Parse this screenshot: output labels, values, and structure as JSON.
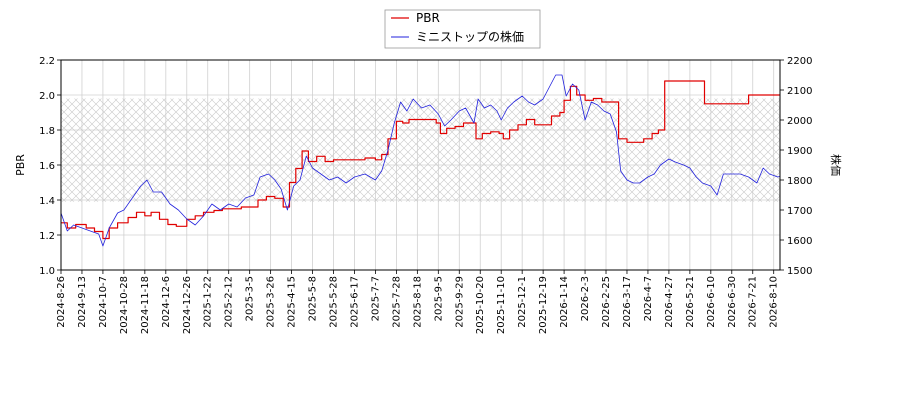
{
  "chart_data": {
    "type": "line",
    "grid": true,
    "legend_placement": "top-center",
    "band": {
      "axis": "left",
      "from": 1.39,
      "to": 1.98,
      "pattern": "crosshatch"
    },
    "x": {
      "tick_labels": [
        "2024-8-26",
        "2024-9-13",
        "2024-10-7",
        "2024-10-28",
        "2024-11-18",
        "2024-12-6",
        "2024-12-26",
        "2025-1-22",
        "2025-2-12",
        "2025-3-5",
        "2025-3-26",
        "2025-4-15",
        "2025-5-8",
        "2025-5-28",
        "2025-6-17",
        "2025-7-7",
        "2025-7-28",
        "2025-8-18",
        "2025-9-5",
        "2025-9-29",
        "2025-10-20",
        "2025-11-10",
        "2025-12-1",
        "2025-12-19",
        "2026-1-14",
        "2026-2-3",
        "2026-2-25",
        "2026-3-17",
        "2026-4-7",
        "2026-4-27",
        "2026-5-21",
        "2026-6-10",
        "2026-6-30",
        "2026-7-21",
        "2026-8-10"
      ]
    },
    "y_left": {
      "label": "PBR",
      "range": [
        1.0,
        2.2
      ],
      "tick_labels": [
        "1.0",
        "1.2",
        "1.4",
        "1.6",
        "1.8",
        "2.0",
        "2.2"
      ]
    },
    "y_right": {
      "label": "株価",
      "range": [
        1500,
        2200
      ],
      "tick_labels": [
        "1500",
        "1600",
        "1700",
        "1800",
        "1900",
        "2000",
        "2100",
        "2200"
      ]
    },
    "series": [
      {
        "name": "PBR",
        "axis": "left",
        "color": "#e00000",
        "points": [
          [
            0,
            1.27
          ],
          [
            0.3,
            1.24
          ],
          [
            0.7,
            1.26
          ],
          [
            1.2,
            1.24
          ],
          [
            1.6,
            1.22
          ],
          [
            2.0,
            1.18
          ],
          [
            2.3,
            1.24
          ],
          [
            2.7,
            1.27
          ],
          [
            3.2,
            1.3
          ],
          [
            3.6,
            1.33
          ],
          [
            4.0,
            1.31
          ],
          [
            4.3,
            1.33
          ],
          [
            4.7,
            1.29
          ],
          [
            5.1,
            1.26
          ],
          [
            5.5,
            1.25
          ],
          [
            6.0,
            1.29
          ],
          [
            6.4,
            1.31
          ],
          [
            6.8,
            1.33
          ],
          [
            7.3,
            1.34
          ],
          [
            7.7,
            1.35
          ],
          [
            8.2,
            1.35
          ],
          [
            8.6,
            1.36
          ],
          [
            9.0,
            1.36
          ],
          [
            9.4,
            1.4
          ],
          [
            9.8,
            1.42
          ],
          [
            10.2,
            1.41
          ],
          [
            10.6,
            1.36
          ],
          [
            10.9,
            1.5
          ],
          [
            11.2,
            1.58
          ],
          [
            11.5,
            1.68
          ],
          [
            11.8,
            1.62
          ],
          [
            12.2,
            1.65
          ],
          [
            12.6,
            1.62
          ],
          [
            13.0,
            1.63
          ],
          [
            13.5,
            1.63
          ],
          [
            14.0,
            1.63
          ],
          [
            14.5,
            1.64
          ],
          [
            15.0,
            1.63
          ],
          [
            15.3,
            1.66
          ],
          [
            15.6,
            1.75
          ],
          [
            16.0,
            1.85
          ],
          [
            16.3,
            1.84
          ],
          [
            16.6,
            1.86
          ],
          [
            17.0,
            1.86
          ],
          [
            17.5,
            1.86
          ],
          [
            17.9,
            1.84
          ],
          [
            18.1,
            1.78
          ],
          [
            18.4,
            1.81
          ],
          [
            18.8,
            1.82
          ],
          [
            19.2,
            1.84
          ],
          [
            19.6,
            1.84
          ],
          [
            19.8,
            1.75
          ],
          [
            20.1,
            1.78
          ],
          [
            20.5,
            1.79
          ],
          [
            20.9,
            1.78
          ],
          [
            21.1,
            1.75
          ],
          [
            21.4,
            1.8
          ],
          [
            21.8,
            1.83
          ],
          [
            22.2,
            1.86
          ],
          [
            22.6,
            1.83
          ],
          [
            23.0,
            1.83
          ],
          [
            23.4,
            1.88
          ],
          [
            23.8,
            1.9
          ],
          [
            24.0,
            1.97
          ],
          [
            24.3,
            2.05
          ],
          [
            24.6,
            2.0
          ],
          [
            25.0,
            1.97
          ],
          [
            25.4,
            1.98
          ],
          [
            25.8,
            1.96
          ],
          [
            26.2,
            1.96
          ],
          [
            26.6,
            1.75
          ],
          [
            27.0,
            1.73
          ],
          [
            27.4,
            1.73
          ],
          [
            27.8,
            1.75
          ],
          [
            28.2,
            1.78
          ],
          [
            28.5,
            1.8
          ],
          [
            28.8,
            2.08
          ],
          [
            29.3,
            2.08
          ],
          [
            29.8,
            2.08
          ],
          [
            30.3,
            2.08
          ],
          [
            30.7,
            1.95
          ],
          [
            31.2,
            1.95
          ],
          [
            31.8,
            1.95
          ],
          [
            32.3,
            1.95
          ],
          [
            32.6,
            1.95
          ],
          [
            32.8,
            2.0
          ],
          [
            33.3,
            2.0
          ],
          [
            33.8,
            2.0
          ],
          [
            34.3,
            2.0
          ],
          [
            34.9,
            2.0
          ]
        ]
      },
      {
        "name": "ミニストップの株価",
        "axis": "right",
        "color": "#2222dd",
        "points": [
          [
            0,
            1690
          ],
          [
            0.3,
            1630
          ],
          [
            0.6,
            1650
          ],
          [
            1.0,
            1640
          ],
          [
            1.4,
            1630
          ],
          [
            1.8,
            1620
          ],
          [
            2.0,
            1580
          ],
          [
            2.3,
            1640
          ],
          [
            2.7,
            1690
          ],
          [
            3.0,
            1700
          ],
          [
            3.4,
            1740
          ],
          [
            3.8,
            1780
          ],
          [
            4.1,
            1800
          ],
          [
            4.4,
            1760
          ],
          [
            4.8,
            1760
          ],
          [
            5.2,
            1720
          ],
          [
            5.6,
            1700
          ],
          [
            6.0,
            1670
          ],
          [
            6.4,
            1650
          ],
          [
            6.8,
            1680
          ],
          [
            7.2,
            1720
          ],
          [
            7.6,
            1700
          ],
          [
            8.0,
            1720
          ],
          [
            8.4,
            1710
          ],
          [
            8.8,
            1740
          ],
          [
            9.2,
            1750
          ],
          [
            9.5,
            1810
          ],
          [
            9.9,
            1820
          ],
          [
            10.2,
            1800
          ],
          [
            10.5,
            1770
          ],
          [
            10.8,
            1700
          ],
          [
            11.1,
            1780
          ],
          [
            11.4,
            1800
          ],
          [
            11.7,
            1880
          ],
          [
            12.0,
            1840
          ],
          [
            12.4,
            1820
          ],
          [
            12.8,
            1800
          ],
          [
            13.2,
            1810
          ],
          [
            13.6,
            1790
          ],
          [
            14.0,
            1810
          ],
          [
            14.5,
            1820
          ],
          [
            15.0,
            1800
          ],
          [
            15.3,
            1830
          ],
          [
            15.6,
            1900
          ],
          [
            15.9,
            1990
          ],
          [
            16.2,
            2060
          ],
          [
            16.5,
            2030
          ],
          [
            16.8,
            2070
          ],
          [
            17.2,
            2040
          ],
          [
            17.6,
            2050
          ],
          [
            18.0,
            2020
          ],
          [
            18.3,
            1980
          ],
          [
            18.6,
            2000
          ],
          [
            19.0,
            2030
          ],
          [
            19.3,
            2040
          ],
          [
            19.7,
            1990
          ],
          [
            19.9,
            2070
          ],
          [
            20.2,
            2040
          ],
          [
            20.5,
            2050
          ],
          [
            20.8,
            2030
          ],
          [
            21.0,
            2000
          ],
          [
            21.3,
            2040
          ],
          [
            21.6,
            2060
          ],
          [
            22.0,
            2080
          ],
          [
            22.3,
            2060
          ],
          [
            22.6,
            2050
          ],
          [
            23.0,
            2070
          ],
          [
            23.3,
            2110
          ],
          [
            23.6,
            2150
          ],
          [
            23.9,
            2150
          ],
          [
            24.1,
            2080
          ],
          [
            24.4,
            2120
          ],
          [
            24.7,
            2100
          ],
          [
            25.0,
            2000
          ],
          [
            25.3,
            2060
          ],
          [
            25.6,
            2050
          ],
          [
            25.9,
            2030
          ],
          [
            26.2,
            2020
          ],
          [
            26.5,
            1960
          ],
          [
            26.7,
            1830
          ],
          [
            27.0,
            1800
          ],
          [
            27.3,
            1790
          ],
          [
            27.6,
            1790
          ],
          [
            28.0,
            1810
          ],
          [
            28.3,
            1820
          ],
          [
            28.6,
            1850
          ],
          [
            29.0,
            1870
          ],
          [
            29.3,
            1860
          ],
          [
            29.7,
            1850
          ],
          [
            30.0,
            1840
          ],
          [
            30.3,
            1810
          ],
          [
            30.6,
            1790
          ],
          [
            31.0,
            1780
          ],
          [
            31.3,
            1750
          ],
          [
            31.6,
            1820
          ],
          [
            32.0,
            1820
          ],
          [
            32.4,
            1820
          ],
          [
            32.8,
            1810
          ],
          [
            33.2,
            1790
          ],
          [
            33.5,
            1840
          ],
          [
            33.8,
            1820
          ],
          [
            34.2,
            1810
          ],
          [
            34.6,
            1820
          ],
          [
            34.9,
            1860
          ]
        ]
      }
    ]
  }
}
